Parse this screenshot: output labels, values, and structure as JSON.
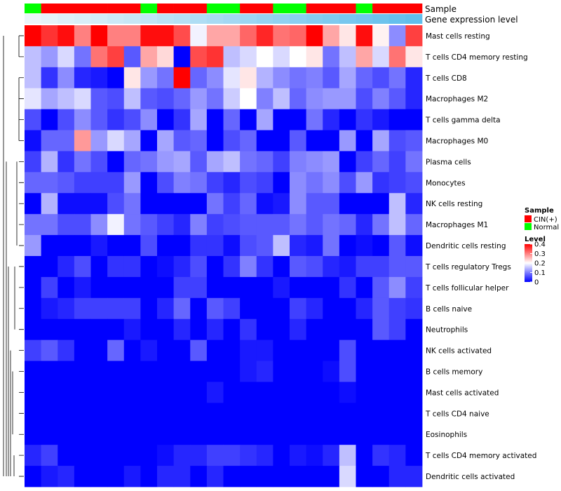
{
  "chart_data": {
    "type": "heatmap",
    "annotation_tracks": [
      {
        "name": "Sample",
        "values": [
          "Normal",
          "CIN(+)",
          "CIN(+)",
          "CIN(+)",
          "CIN(+)",
          "CIN(+)",
          "CIN(+)",
          "Normal",
          "CIN(+)",
          "CIN(+)",
          "CIN(+)",
          "Normal",
          "Normal",
          "CIN(+)",
          "CIN(+)",
          "Normal",
          "Normal",
          "CIN(+)",
          "CIN(+)",
          "CIN(+)",
          "Normal",
          "CIN(+)",
          "CIN(+)",
          "CIN(+)"
        ]
      },
      {
        "name": "Gene expression level",
        "values": [
          0.0,
          0.04,
          0.09,
          0.13,
          0.17,
          0.22,
          0.26,
          0.3,
          0.35,
          0.39,
          0.43,
          0.48,
          0.52,
          0.57,
          0.61,
          0.65,
          0.7,
          0.74,
          0.78,
          0.83,
          0.87,
          0.91,
          0.96,
          1.0
        ]
      }
    ],
    "rows": [
      "Mast cells resting",
      "T cells CD4 memory resting",
      "T cells CD8",
      "Macrophages M2",
      "T cells gamma delta",
      "Macrophages M0",
      "Plasma cells",
      "Monocytes",
      "NK cells resting",
      "Macrophages M1",
      "Dendritic cells resting",
      "T cells regulatory  Tregs",
      "T cells follicular helper",
      "B cells naive",
      "Neutrophils",
      "NK cells activated",
      "B cells memory",
      "Mast cells activated",
      "T cells CD4 naive",
      "Eosinophils",
      "T cells CD4 memory activated",
      "Dendritic cells activated"
    ],
    "values": [
      [
        0.4,
        0.36,
        0.39,
        0.3,
        0.4,
        0.3,
        0.3,
        0.39,
        0.39,
        0.34,
        0.19,
        0.27,
        0.27,
        0.32,
        0.37,
        0.31,
        0.32,
        0.4,
        0.27,
        0.22,
        0.39,
        0.21,
        0.11,
        0.35
      ],
      [
        0.15,
        0.12,
        0.17,
        0.09,
        0.31,
        0.35,
        0.07,
        0.27,
        0.23,
        0.0,
        0.34,
        0.36,
        0.15,
        0.17,
        0.2,
        0.17,
        0.2,
        0.22,
        0.09,
        0.15,
        0.27,
        0.17,
        0.31,
        0.22
      ],
      [
        0.15,
        0.04,
        0.11,
        0.03,
        0.02,
        0.0,
        0.22,
        0.12,
        0.09,
        0.4,
        0.08,
        0.11,
        0.18,
        0.22,
        0.14,
        0.11,
        0.09,
        0.1,
        0.07,
        0.13,
        0.08,
        0.06,
        0.09,
        0.03
      ],
      [
        0.18,
        0.13,
        0.15,
        0.17,
        0.07,
        0.06,
        0.15,
        0.07,
        0.06,
        0.08,
        0.12,
        0.09,
        0.16,
        0.2,
        0.1,
        0.15,
        0.08,
        0.11,
        0.12,
        0.12,
        0.06,
        0.1,
        0.07,
        0.03
      ],
      [
        0.06,
        0.0,
        0.06,
        0.11,
        0.07,
        0.04,
        0.06,
        0.11,
        0.0,
        0.04,
        0.13,
        0.0,
        0.08,
        0.0,
        0.13,
        0.0,
        0.0,
        0.09,
        0.03,
        0.0,
        0.04,
        0.02,
        0.0,
        0.0
      ],
      [
        0.01,
        0.08,
        0.08,
        0.28,
        0.12,
        0.17,
        0.13,
        0.0,
        0.13,
        0.07,
        0.08,
        0.0,
        0.06,
        0.08,
        0.0,
        0.0,
        0.07,
        0.0,
        0.0,
        0.12,
        0.0,
        0.13,
        0.06,
        0.07
      ],
      [
        0.05,
        0.14,
        0.04,
        0.09,
        0.06,
        0.0,
        0.08,
        0.09,
        0.12,
        0.13,
        0.07,
        0.13,
        0.15,
        0.09,
        0.08,
        0.05,
        0.1,
        0.11,
        0.12,
        0.0,
        0.05,
        0.08,
        0.05,
        0.09
      ],
      [
        0.08,
        0.08,
        0.07,
        0.05,
        0.05,
        0.05,
        0.12,
        0.0,
        0.06,
        0.1,
        0.09,
        0.05,
        0.03,
        0.06,
        0.05,
        0.0,
        0.11,
        0.09,
        0.11,
        0.06,
        0.12,
        0.04,
        0.05,
        0.06
      ],
      [
        0.0,
        0.14,
        0.01,
        0.01,
        0.01,
        0.06,
        0.09,
        0.0,
        0.0,
        0.0,
        0.0,
        0.09,
        0.05,
        0.08,
        0.01,
        0.02,
        0.11,
        0.07,
        0.07,
        0.0,
        0.0,
        0.0,
        0.15,
        0.03
      ],
      [
        0.09,
        0.09,
        0.06,
        0.06,
        0.11,
        0.19,
        0.09,
        0.07,
        0.05,
        0.03,
        0.1,
        0.05,
        0.06,
        0.07,
        0.07,
        0.07,
        0.09,
        0.07,
        0.09,
        0.08,
        0.03,
        0.09,
        0.15,
        0.08
      ],
      [
        0.12,
        0.0,
        0.0,
        0.0,
        0.02,
        0.0,
        0.0,
        0.06,
        0.0,
        0.0,
        0.04,
        0.04,
        0.01,
        0.06,
        0.07,
        0.15,
        0.03,
        0.02,
        0.09,
        0.0,
        0.01,
        0.0,
        0.07,
        0.01
      ],
      [
        0.0,
        0.0,
        0.03,
        0.06,
        0.0,
        0.04,
        0.04,
        0.0,
        0.01,
        0.03,
        0.06,
        0.0,
        0.04,
        0.1,
        0.04,
        0.0,
        0.07,
        0.06,
        0.03,
        0.02,
        0.05,
        0.05,
        0.07,
        0.07
      ],
      [
        0.0,
        0.05,
        0.0,
        0.02,
        0.0,
        0.0,
        0.0,
        0.0,
        0.0,
        0.05,
        0.05,
        0.0,
        0.0,
        0.0,
        0.0,
        0.02,
        0.0,
        0.0,
        0.0,
        0.04,
        0.0,
        0.07,
        0.11,
        0.05
      ],
      [
        0.0,
        0.02,
        0.03,
        0.05,
        0.05,
        0.05,
        0.05,
        0.0,
        0.03,
        0.08,
        0.0,
        0.07,
        0.05,
        0.0,
        0.0,
        0.0,
        0.05,
        0.03,
        0.0,
        0.0,
        0.03,
        0.07,
        0.05,
        0.04
      ],
      [
        0.0,
        0.0,
        0.0,
        0.0,
        0.0,
        0.0,
        0.02,
        0.0,
        0.0,
        0.03,
        0.0,
        0.03,
        0.0,
        0.04,
        0.0,
        0.0,
        0.03,
        0.0,
        0.0,
        0.0,
        0.0,
        0.07,
        0.05,
        0.0
      ],
      [
        0.05,
        0.07,
        0.04,
        0.0,
        0.0,
        0.08,
        0.0,
        0.02,
        0.0,
        0.0,
        0.07,
        0.0,
        0.0,
        0.02,
        0.02,
        0.0,
        0.0,
        0.0,
        0.0,
        0.06,
        0.0,
        0.0,
        0.0,
        0.0
      ],
      [
        0.0,
        0.0,
        0.0,
        0.0,
        0.0,
        0.0,
        0.0,
        0.0,
        0.0,
        0.0,
        0.0,
        0.0,
        0.0,
        0.02,
        0.03,
        0.0,
        0.0,
        0.0,
        0.01,
        0.06,
        0.0,
        0.0,
        0.0,
        0.0
      ],
      [
        0.0,
        0.0,
        0.0,
        0.0,
        0.0,
        0.0,
        0.0,
        0.0,
        0.0,
        0.0,
        0.0,
        0.02,
        0.0,
        0.0,
        0.0,
        0.0,
        0.0,
        0.0,
        0.0,
        0.01,
        0.0,
        0.0,
        0.0,
        0.0
      ],
      [
        0.0,
        0.0,
        0.0,
        0.0,
        0.0,
        0.0,
        0.0,
        0.0,
        0.0,
        0.0,
        0.0,
        0.0,
        0.0,
        0.0,
        0.0,
        0.0,
        0.0,
        0.0,
        0.0,
        0.0,
        0.0,
        0.0,
        0.0,
        0.0
      ],
      [
        0.0,
        0.0,
        0.0,
        0.0,
        0.0,
        0.0,
        0.0,
        0.0,
        0.0,
        0.0,
        0.0,
        0.0,
        0.0,
        0.0,
        0.0,
        0.0,
        0.0,
        0.0,
        0.0,
        0.0,
        0.0,
        0.0,
        0.0,
        0.0
      ],
      [
        0.03,
        0.05,
        0.0,
        0.0,
        0.0,
        0.0,
        0.0,
        0.0,
        0.01,
        0.03,
        0.03,
        0.05,
        0.05,
        0.04,
        0.03,
        0.0,
        0.02,
        0.01,
        0.03,
        0.15,
        0.0,
        0.04,
        0.03,
        0.0
      ],
      [
        0.0,
        0.02,
        0.03,
        0.0,
        0.0,
        0.0,
        0.02,
        0.0,
        0.03,
        0.03,
        0.0,
        0.03,
        0.0,
        0.0,
        0.0,
        0.0,
        0.0,
        0.0,
        0.0,
        0.17,
        0.0,
        0.0,
        0.03,
        0.03
      ]
    ],
    "color_scale": {
      "min": 0,
      "max": 0.4,
      "low": "#0000ff",
      "mid": "#ffffff",
      "high": "#ff0000"
    },
    "legends": [
      {
        "title": "Sample",
        "items": [
          {
            "label": "CIN(+)",
            "color": "#ff0000"
          },
          {
            "label": "Normal",
            "color": "#00ff00"
          }
        ]
      },
      {
        "title": "Level",
        "ticks": [
          0.4,
          0.3,
          0.2,
          0.1,
          0
        ]
      }
    ],
    "row_dendrogram": true,
    "column_order_note": ""
  }
}
